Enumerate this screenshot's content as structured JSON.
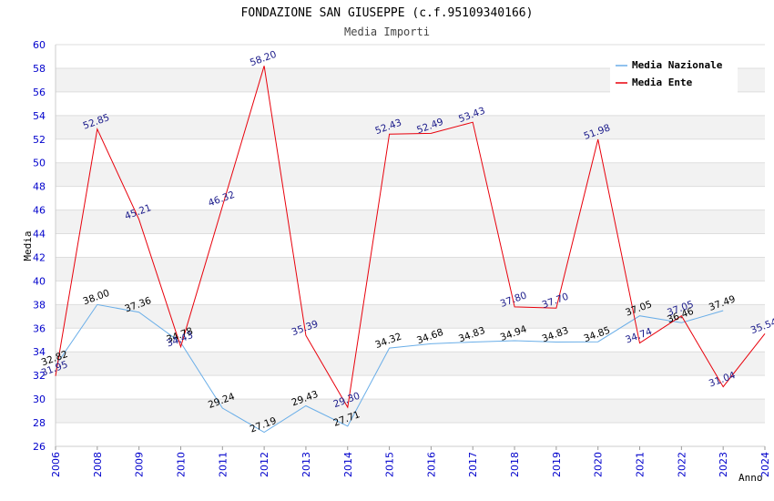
{
  "chart_data": {
    "type": "line",
    "title": "FONDAZIONE SAN GIUSEPPE (c.f.95109340166)",
    "subtitle": "Media Importi",
    "xlabel": "Anno",
    "ylabel": "Media",
    "ylim": [
      26,
      60
    ],
    "ystep": 2,
    "legend_position": "top-right",
    "categories": [
      "2006",
      "2008",
      "2009",
      "2010",
      "2011",
      "2012",
      "2013",
      "2014",
      "2015",
      "2016",
      "2017",
      "2018",
      "2019",
      "2020",
      "2021",
      "2022",
      "2023",
      "2024"
    ],
    "series": [
      {
        "name": "Media Nazionale",
        "color": "#6aaee8",
        "label_class": "dl-nat",
        "values": [
          32.82,
          38.0,
          37.36,
          34.78,
          29.24,
          27.19,
          29.43,
          27.71,
          34.32,
          34.68,
          34.83,
          34.94,
          34.83,
          34.85,
          37.05,
          36.46,
          37.49,
          null
        ],
        "labels": [
          "32.82",
          "38.00",
          "37.36",
          "34.78",
          "29.24",
          "27.19",
          "29.43",
          "27.71",
          "34.32",
          "34.68",
          "34.83",
          "34.94",
          "34.83",
          "34.85",
          "37.05",
          "36.46",
          "37.49",
          ""
        ]
      },
      {
        "name": "Media Ente",
        "color": "#e8000b",
        "label_class": "dl-ente",
        "values": [
          31.95,
          52.85,
          45.21,
          34.43,
          46.32,
          58.2,
          35.39,
          29.3,
          52.43,
          52.49,
          53.43,
          37.8,
          37.7,
          51.98,
          34.74,
          37.05,
          31.04,
          35.54
        ],
        "labels": [
          "31.95",
          "52.85",
          "45.21",
          "34.43",
          "46.32",
          "58.20",
          "35.39",
          "29.30",
          "52.43",
          "52.49",
          "53.43",
          "37.80",
          "37.70",
          "51.98",
          "34.74",
          "37.05",
          "31.04",
          "35.54"
        ]
      }
    ]
  }
}
